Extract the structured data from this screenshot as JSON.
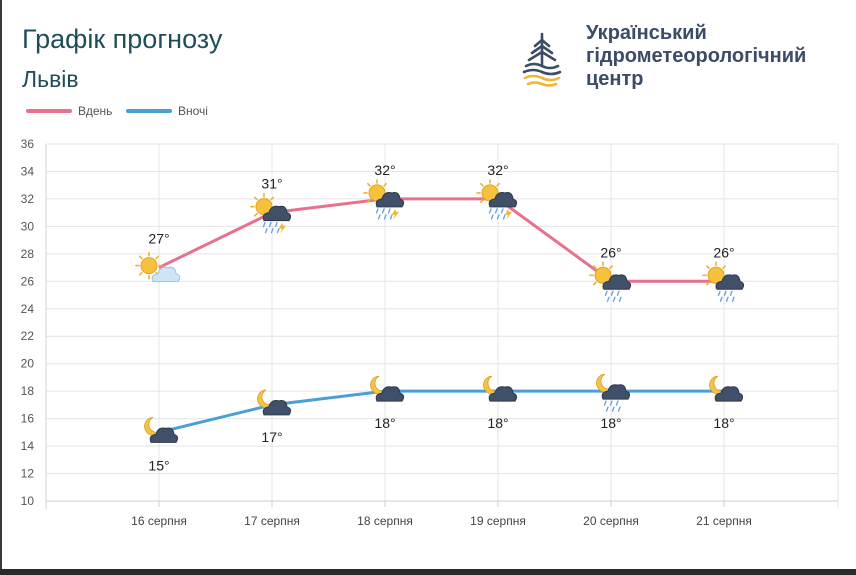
{
  "header": {
    "title": "Графік прогнозу",
    "city": "Львів",
    "org_lines": [
      "Український",
      "гідрометеорологічний",
      "центр"
    ]
  },
  "legend": [
    {
      "label": "Вдень",
      "color": "#e8718d"
    },
    {
      "label": "Вночі",
      "color": "#4a9fd4"
    }
  ],
  "chart_data": {
    "type": "line",
    "categories": [
      "16 серпня",
      "17 серпня",
      "18 серпня",
      "19 серпня",
      "20 серпня",
      "21 серпня"
    ],
    "series": [
      {
        "name": "Вдень",
        "color": "#e8718d",
        "values": [
          27,
          31,
          32,
          32,
          26,
          26
        ],
        "labels": [
          "27°",
          "31°",
          "32°",
          "32°",
          "26°",
          "26°"
        ],
        "icons": [
          "sun-cloud-icon",
          "sun-thunderstorm-icon",
          "sun-thunderstorm-icon",
          "sun-thunderstorm-icon",
          "sun-rain-icon",
          "sun-rain-icon"
        ]
      },
      {
        "name": "Вночі",
        "color": "#4a9fd4",
        "values": [
          15,
          17,
          18,
          18,
          18,
          18
        ],
        "labels": [
          "15°",
          "17°",
          "18°",
          "18°",
          "18°",
          "18°"
        ],
        "icons": [
          "moon-cloud-icon",
          "moon-cloud-icon",
          "moon-cloud-icon",
          "moon-cloud-icon",
          "moon-rain-icon",
          "moon-cloud-icon"
        ]
      }
    ],
    "ylim": [
      10,
      36
    ],
    "yticks": [
      "10",
      "12",
      "14",
      "16",
      "18",
      "20",
      "22",
      "24",
      "26",
      "28",
      "30",
      "32",
      "34",
      "36"
    ],
    "grid": true,
    "legend_position": "top-left"
  }
}
